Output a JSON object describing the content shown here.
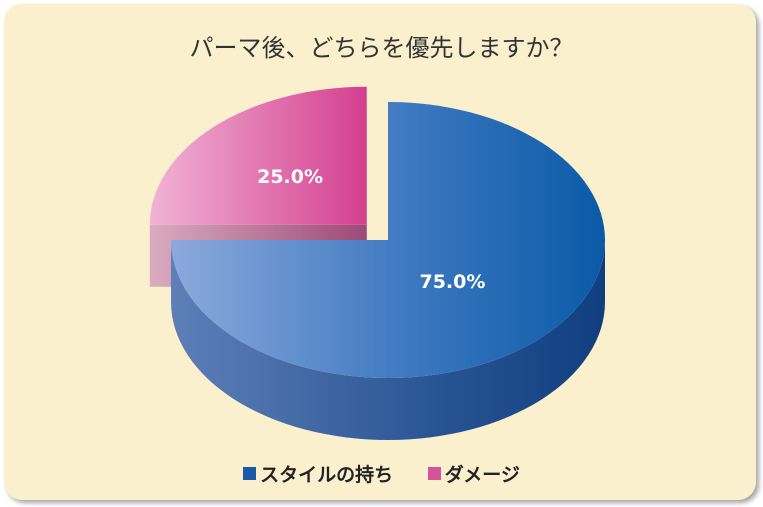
{
  "chart_data": {
    "type": "pie",
    "title": "パーマ後、どちらを優先しますか？",
    "labels": [
      "スタイルの持ち",
      "ダメージ"
    ],
    "values": [
      75.0,
      25.0
    ],
    "data_labels": [
      "75.0%",
      "25.0%"
    ],
    "colors": [
      "#1a5aa6",
      "#d4539a"
    ],
    "legend_position": "bottom",
    "exploded": [
      "ダメージ"
    ]
  }
}
